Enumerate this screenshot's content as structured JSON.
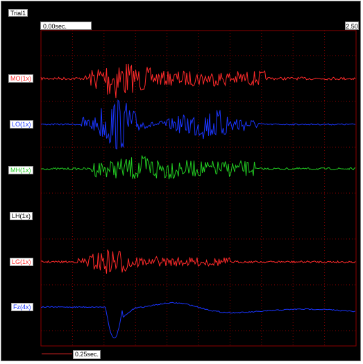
{
  "window": {
    "title_label": "Trial1"
  },
  "time_axis": {
    "start_label": "0.00sec.",
    "end_label": "2.50",
    "start_seconds": 0.0,
    "end_seconds": 2.5
  },
  "scale": {
    "label": "0.25sec."
  },
  "colors": {
    "background": "#000000",
    "grid": "#8b0000",
    "red": "#ff2a2a",
    "blue": "#1a35ff",
    "green": "#22cc22"
  },
  "channels": [
    {
      "id": "MO",
      "label": "MO(1x)",
      "color": "#ff2a2a",
      "label_color": "#ff2a2a"
    },
    {
      "id": "LO",
      "label": "LO(1x)",
      "color": "#1a35ff",
      "label_color": "#1a35ff"
    },
    {
      "id": "MH",
      "label": "MH(1x)",
      "color": "#22cc22",
      "label_color": "#22cc22"
    },
    {
      "id": "LH",
      "label": "LH(1x)",
      "color": "#000000",
      "label_color": "#000000"
    },
    {
      "id": "LG",
      "label": "LG(1x)",
      "color": "#ff2a2a",
      "label_color": "#ff2a2a"
    },
    {
      "id": "Fz",
      "label": "Fz(4x)",
      "color": "#1a35ff",
      "label_color": "#1a35ff"
    }
  ]
}
